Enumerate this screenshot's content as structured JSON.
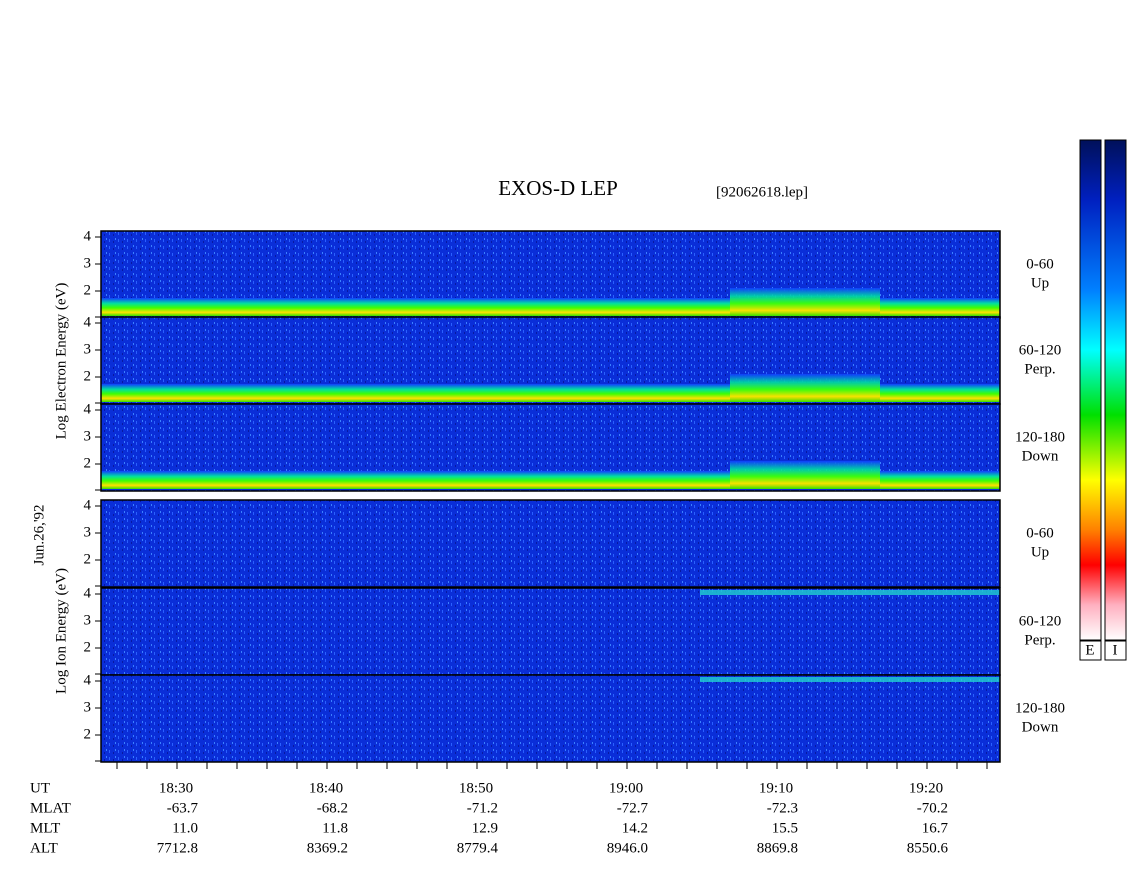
{
  "header": {
    "title": "EXOS-D LEP",
    "file": "[92062618.lep]",
    "date": "Jun.26,'92"
  },
  "electron": {
    "axis_label": "Log   Electron   Energy (eV)",
    "panels": [
      {
        "angle": "0-60",
        "direction": "Up"
      },
      {
        "angle": "60-120",
        "direction": "Perp."
      },
      {
        "angle": "120-180",
        "direction": "Down"
      }
    ]
  },
  "ion": {
    "axis_label": "Log   Ion   Energy (eV)",
    "panels": [
      {
        "angle": "0-60",
        "direction": "Up"
      },
      {
        "angle": "60-120",
        "direction": "Perp."
      },
      {
        "angle": "120-180",
        "direction": "Down"
      }
    ]
  },
  "yticks": [
    2,
    3,
    4
  ],
  "ephemeris": [
    {
      "name": "UT",
      "values": [
        "18:30",
        "18:40",
        "18:50",
        "19:00",
        "19:10",
        "19:20"
      ]
    },
    {
      "name": "MLAT",
      "values": [
        "-63.7",
        "-68.2",
        "-71.2",
        "-72.7",
        "-72.3",
        "-70.2"
      ]
    },
    {
      "name": "MLT",
      "values": [
        "11.0",
        "11.8",
        "12.9",
        "14.2",
        "15.5",
        "16.7"
      ]
    },
    {
      "name": "ALT",
      "values": [
        "7712.8",
        "8369.2",
        "8779.4",
        "8946.0",
        "8869.8",
        "8550.6"
      ]
    }
  ],
  "colorbar": {
    "labels": [
      "E",
      "I"
    ]
  }
}
